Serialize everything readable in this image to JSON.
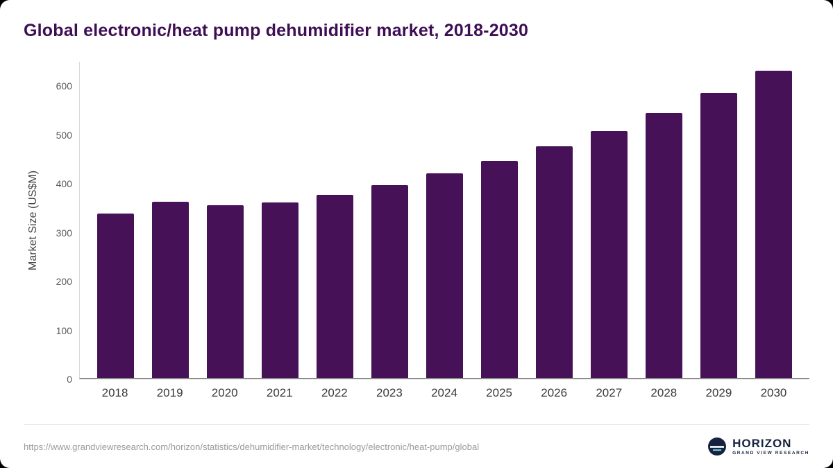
{
  "title": "Global electronic/heat pump dehumidifier market, 2018-2030",
  "chart_data": {
    "type": "bar",
    "title": "Global electronic/heat pump dehumidifier market, 2018-2030",
    "categories": [
      "2018",
      "2019",
      "2020",
      "2021",
      "2022",
      "2023",
      "2024",
      "2025",
      "2026",
      "2027",
      "2028",
      "2029",
      "2030"
    ],
    "values": [
      338,
      362,
      355,
      361,
      377,
      397,
      421,
      446,
      476,
      508,
      545,
      586,
      632
    ],
    "xlabel": "",
    "ylabel": "Market Size (US$M)",
    "ylim": [
      0,
      650
    ],
    "yticks": [
      0,
      100,
      200,
      300,
      400,
      500,
      600
    ],
    "bar_color": "#471158",
    "grid": false,
    "legend": "none"
  },
  "footer": {
    "source_url": "https://www.grandviewresearch.com/horizon/statistics/dehumidifier-market/technology/electronic/heat-pump/global",
    "logo_title": "HORIZON",
    "logo_subtitle": "GRAND VIEW RESEARCH"
  }
}
